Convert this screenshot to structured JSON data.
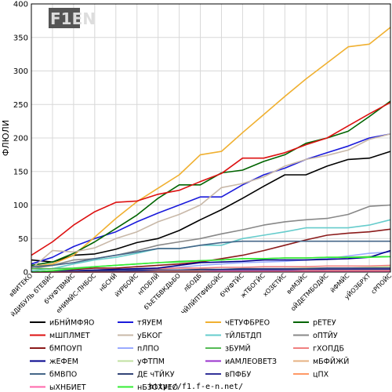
{
  "chart_data": {
    "type": "line",
    "ylabel": "ФЛЮЛИ",
    "ylim": [
      0,
      400
    ],
    "yticks": [
      0,
      50,
      100,
      150,
      200,
      250,
      300,
      350,
      400
    ],
    "grid": true,
    "legend_position": "bottom",
    "categories": [
      "вВИТЕКО",
      "йДИБУЛЬ бТЕВЙС",
      "бЧУФТВМЙС",
      "еНИМЙС-ПНБОС",
      "нБСНЙ",
      "йУРБОЙС",
      "нПОБЛЙ",
      "бЪЕТБВКДЬБО",
      "лБОДБ",
      "ЧЙЛЙПТФИБОЙС",
      "бЧУФТЙС",
      "жТБОГЙС",
      "хОЗЕТЙС",
      "веМЗЙС",
      "оЙДЕТМБОДЙС",
      "йФМЙС",
      "уЙОЗБРХТ",
      "сРПОЙС"
    ],
    "series": [
      {
        "name": "иБНЙМФЯО",
        "color": "#000000",
        "values": [
          18,
          15,
          25,
          27,
          34,
          44,
          50,
          62,
          78,
          93,
          110,
          128,
          145,
          145,
          158,
          168,
          170,
          180
        ]
      },
      {
        "name": "тЯУЕМ",
        "color": "#1a1adb",
        "values": [
          12,
          22,
          38,
          50,
          60,
          75,
          88,
          100,
          112,
          112,
          130,
          145,
          155,
          168,
          178,
          188,
          200,
          206
        ]
      },
      {
        "name": "чЕТУФБРЕО",
        "color": "#f0b030",
        "values": [
          8,
          12,
          25,
          52,
          80,
          105,
          125,
          145,
          175,
          180,
          208,
          235,
          262,
          288,
          312,
          336,
          340,
          365
        ]
      },
      {
        "name": "рЕТЕУ",
        "color": "#006400",
        "values": [
          10,
          15,
          28,
          45,
          65,
          85,
          110,
          130,
          130,
          148,
          152,
          165,
          175,
          192,
          200,
          210,
          232,
          255
        ]
      },
      {
        "name": "мШПЛМЕТ",
        "color": "#dd1111",
        "values": [
          25,
          45,
          70,
          90,
          104,
          106,
          116,
          122,
          135,
          147,
          170,
          170,
          178,
          190,
          200,
          218,
          236,
          253
        ]
      },
      {
        "name": "уБКОГ",
        "color": "#c8b8a8",
        "values": [
          5,
          32,
          30,
          36,
          50,
          60,
          75,
          86,
          100,
          126,
          132,
          142,
          158,
          168,
          174,
          182,
          198,
          206
        ]
      },
      {
        "name": "тЙЛБТДП",
        "color": "#66cccc",
        "values": [
          2,
          5,
          12,
          18,
          22,
          28,
          35,
          35,
          40,
          40,
          50,
          55,
          60,
          66,
          66,
          66,
          70,
          78
        ]
      },
      {
        "name": "оПТЙУ",
        "color": "#888888",
        "values": [
          5,
          10,
          18,
          20,
          25,
          32,
          40,
          45,
          50,
          57,
          63,
          70,
          75,
          78,
          80,
          86,
          98,
          100
        ]
      },
      {
        "name": "бМПОУП",
        "color": "#8b1a1a",
        "values": [
          0,
          2,
          4,
          6,
          6,
          8,
          10,
          12,
          15,
          20,
          25,
          32,
          40,
          48,
          55,
          58,
          60,
          64
        ]
      },
      {
        "name": "пЛПО",
        "color": "#99aaff",
        "values": [
          0,
          0,
          1,
          2,
          3,
          4,
          5,
          7,
          10,
          12,
          14,
          15,
          16,
          18,
          20,
          24,
          28,
          30
        ]
      },
      {
        "name": "зБУМЙ",
        "color": "#55bb55",
        "values": [
          5,
          5,
          6,
          8,
          10,
          12,
          14,
          16,
          17,
          18,
          20,
          20,
          21,
          21,
          22,
          22,
          23,
          23
        ]
      },
      {
        "name": "гХОПДБ",
        "color": "#f08080",
        "values": [
          0,
          1,
          2,
          3,
          4,
          5,
          5,
          6,
          6,
          7,
          7,
          8,
          8,
          8,
          9,
          9,
          9,
          10
        ]
      },
      {
        "name": "жЕФЕМ",
        "color": "#00008b",
        "values": [
          0,
          1,
          2,
          3,
          4,
          5,
          6,
          10,
          14,
          15,
          16,
          18,
          18,
          18,
          19,
          20,
          22,
          32
        ]
      },
      {
        "name": "уФТПМ",
        "color": "#c0e0a0",
        "values": [
          0,
          0,
          1,
          1,
          2,
          2,
          3,
          3,
          4,
          4,
          5,
          5,
          5,
          6,
          6,
          6,
          7,
          8
        ]
      },
      {
        "name": "иАМЛЕОВЕТЗ",
        "color": "#9932cc",
        "values": [
          0,
          0,
          0,
          1,
          1,
          1,
          2,
          2,
          2,
          3,
          3,
          3,
          4,
          4,
          4,
          4,
          5,
          5
        ]
      },
      {
        "name": "мБФЙЖЙ",
        "color": "#e6b080",
        "values": [
          0,
          0,
          0,
          0,
          1,
          1,
          1,
          1,
          2,
          2,
          2,
          2,
          3,
          3,
          3,
          3,
          3,
          3
        ]
      },
      {
        "name": "бМВПО",
        "color": "#446688",
        "values": [
          8,
          10,
          14,
          20,
          25,
          30,
          35,
          35,
          40,
          44,
          46,
          46,
          46,
          46,
          46,
          46,
          46,
          46
        ]
      },
      {
        "name": "ДЕ чТЙКУ",
        "color": "#334477",
        "values": [
          0,
          1,
          1,
          2,
          2,
          3,
          3,
          3,
          4,
          4,
          5,
          5,
          5,
          5,
          6,
          6,
          6,
          6
        ]
      },
      {
        "name": "вПФБУ",
        "color": "#333399",
        "values": [
          0,
          0,
          1,
          1,
          1,
          2,
          2,
          2,
          2,
          3,
          3,
          3,
          3,
          3,
          4,
          4,
          4,
          4
        ]
      },
      {
        "name": "цПХ",
        "color": "#ff9966",
        "values": [
          0,
          0,
          0,
          0,
          0,
          0,
          1,
          1,
          1,
          1,
          1,
          1,
          1,
          2,
          2,
          2,
          2,
          2
        ]
      },
      {
        "name": "ыХНБИЕТ",
        "color": "#ff66aa",
        "values": [
          0,
          0,
          0,
          0,
          0,
          0,
          0,
          0,
          0,
          1,
          1,
          1,
          1,
          1,
          1,
          1,
          1,
          1
        ]
      },
      {
        "name": "нБЗОХУЕО",
        "color": "#33ee33",
        "values": [
          0,
          2,
          5,
          8,
          10,
          12,
          14,
          15,
          17,
          18,
          20,
          20,
          21,
          21,
          22,
          22,
          22,
          23
        ]
      }
    ]
  },
  "legend": {
    "entries": [
      {
        "name": "иБНЙМФЯО",
        "color": "#000000"
      },
      {
        "name": "тЯУЕМ",
        "color": "#1a1adb"
      },
      {
        "name": "чЕТУФБРЕО",
        "color": "#f0b030"
      },
      {
        "name": "рЕТЕУ",
        "color": "#006400"
      },
      {
        "name": "мШПЛМЕТ",
        "color": "#dd1111"
      },
      {
        "name": "уБКОГ",
        "color": "#c8b8a8"
      },
      {
        "name": "тЙЛБТДП",
        "color": "#66cccc"
      },
      {
        "name": "оПТЙУ",
        "color": "#888888"
      },
      {
        "name": "бМПОУП",
        "color": "#8b1a1a"
      },
      {
        "name": "пЛПО",
        "color": "#99aaff"
      },
      {
        "name": "зБУМЙ",
        "color": "#55bb55"
      },
      {
        "name": "гХОПДБ",
        "color": "#f08080"
      },
      {
        "name": "жЕФЕМ",
        "color": "#00008b"
      },
      {
        "name": "уФТПМ",
        "color": "#c0e0a0"
      },
      {
        "name": "иАМЛЕОВЕТЗ",
        "color": "#9932cc"
      },
      {
        "name": "мБФЙЖЙ",
        "color": "#e6b080"
      },
      {
        "name": "бМВПО",
        "color": "#446688"
      },
      {
        "name": "ДЕ чТЙКУ",
        "color": "#334477"
      },
      {
        "name": "вПФБУ",
        "color": "#333399"
      },
      {
        "name": "цПХ",
        "color": "#ff9966"
      },
      {
        "name": "ыХНБИЕТ",
        "color": "#ff66aa"
      },
      {
        "name": "нБЗОХУЕО",
        "color": "#33ee33"
      }
    ]
  },
  "logo": {
    "text": "F1EN"
  },
  "footer": {
    "url": "http://f1.f-e-n.net/"
  }
}
